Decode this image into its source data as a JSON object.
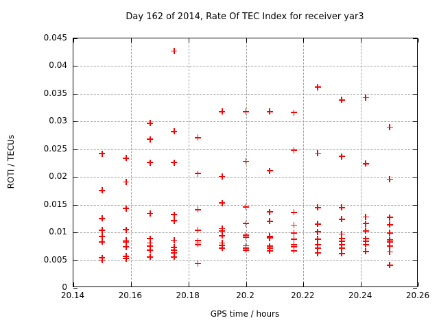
{
  "chart_data": {
    "type": "scatter",
    "title": "Day 162 of 2014, Rate Of TEC Index for receiver yar3",
    "xlabel": "GPS time / hours",
    "ylabel": "ROTI / TECUs",
    "xlim": [
      20.14,
      20.26
    ],
    "ylim": [
      0,
      0.045
    ],
    "xticks": {
      "values": [
        20.14,
        20.16,
        20.18,
        20.2,
        20.22,
        20.24,
        20.26
      ],
      "labels": [
        "20.14",
        "20.16",
        "20.18",
        "20.2",
        "20.22",
        "20.24",
        "20.26"
      ]
    },
    "yticks": {
      "values": [
        0,
        0.005,
        0.01,
        0.015,
        0.02,
        0.025,
        0.03,
        0.035,
        0.04,
        0.045
      ],
      "labels": [
        "0",
        "0.005",
        "0.01",
        "0.015",
        "0.02",
        "0.025",
        "0.03",
        "0.035",
        "0.04",
        "0.045"
      ]
    },
    "grid": true,
    "grid_x": [
      20.16,
      20.18,
      20.2,
      20.22,
      20.24
    ],
    "grid_y": [
      0.005,
      0.01,
      0.015,
      0.02,
      0.025,
      0.03,
      0.035,
      0.04
    ],
    "legend": "none",
    "marker": "plus",
    "marker_color": "#ff0000",
    "series": [
      {
        "name": "ROTI",
        "points": [
          [
            20.15,
            0.0242
          ],
          [
            20.15,
            0.0176
          ],
          [
            20.15,
            0.0125
          ],
          [
            20.15,
            0.0104
          ],
          [
            20.15,
            0.0093
          ],
          [
            20.15,
            0.0083
          ],
          [
            20.15,
            0.0054
          ],
          [
            20.15,
            0.005
          ],
          [
            20.1583,
            0.0234
          ],
          [
            20.1583,
            0.0191
          ],
          [
            20.1583,
            0.0143
          ],
          [
            20.1583,
            0.0105
          ],
          [
            20.1583,
            0.0086
          ],
          [
            20.1583,
            0.0083
          ],
          [
            20.1583,
            0.0074
          ],
          [
            20.1583,
            0.0057
          ],
          [
            20.1583,
            0.0053
          ],
          [
            20.1667,
            0.0297
          ],
          [
            20.1667,
            0.0268
          ],
          [
            20.1667,
            0.0226
          ],
          [
            20.1667,
            0.0134
          ],
          [
            20.1667,
            0.0089
          ],
          [
            20.1667,
            0.0081
          ],
          [
            20.1667,
            0.0075
          ],
          [
            20.1667,
            0.0068
          ],
          [
            20.1667,
            0.0056
          ],
          [
            20.175,
            0.0427
          ],
          [
            20.175,
            0.0282
          ],
          [
            20.175,
            0.0226
          ],
          [
            20.175,
            0.0132
          ],
          [
            20.175,
            0.0121
          ],
          [
            20.175,
            0.0086
          ],
          [
            20.175,
            0.0073
          ],
          [
            20.175,
            0.0068
          ],
          [
            20.175,
            0.0063
          ],
          [
            20.175,
            0.0056
          ],
          [
            20.1833,
            0.0271
          ],
          [
            20.1833,
            0.0206
          ],
          [
            20.1833,
            0.0141
          ],
          [
            20.1833,
            0.0104
          ],
          [
            20.1833,
            0.0085
          ],
          [
            20.1833,
            0.0081
          ],
          [
            20.1833,
            0.0078
          ],
          [
            20.1833,
            0.0044
          ],
          [
            20.1917,
            0.0318
          ],
          [
            20.1917,
            0.0201
          ],
          [
            20.1917,
            0.0153
          ],
          [
            20.1917,
            0.0107
          ],
          [
            20.1917,
            0.0103
          ],
          [
            20.1917,
            0.0094
          ],
          [
            20.1917,
            0.0081
          ],
          [
            20.1917,
            0.0077
          ],
          [
            20.1917,
            0.0072
          ],
          [
            20.2,
            0.0318
          ],
          [
            20.2,
            0.0228
          ],
          [
            20.2,
            0.0146
          ],
          [
            20.2,
            0.0116
          ],
          [
            20.2,
            0.0095
          ],
          [
            20.2,
            0.0091
          ],
          [
            20.2,
            0.0076
          ],
          [
            20.2,
            0.0072
          ],
          [
            20.2,
            0.0068
          ],
          [
            20.2083,
            0.0318
          ],
          [
            20.2083,
            0.0211
          ],
          [
            20.2083,
            0.0137
          ],
          [
            20.2083,
            0.012
          ],
          [
            20.2083,
            0.0093
          ],
          [
            20.2083,
            0.009
          ],
          [
            20.2083,
            0.0075
          ],
          [
            20.2083,
            0.0072
          ],
          [
            20.2083,
            0.0067
          ],
          [
            20.2167,
            0.0316
          ],
          [
            20.2167,
            0.0248
          ],
          [
            20.2167,
            0.0136
          ],
          [
            20.2167,
            0.0113
          ],
          [
            20.2167,
            0.0099
          ],
          [
            20.2167,
            0.0088
          ],
          [
            20.2167,
            0.0078
          ],
          [
            20.2167,
            0.0074
          ],
          [
            20.2167,
            0.0067
          ],
          [
            20.225,
            0.0362
          ],
          [
            20.225,
            0.0243
          ],
          [
            20.225,
            0.0145
          ],
          [
            20.225,
            0.0115
          ],
          [
            20.225,
            0.0101
          ],
          [
            20.225,
            0.0088
          ],
          [
            20.225,
            0.0078
          ],
          [
            20.225,
            0.0072
          ],
          [
            20.225,
            0.0063
          ],
          [
            20.2333,
            0.0339
          ],
          [
            20.2333,
            0.0237
          ],
          [
            20.2333,
            0.0145
          ],
          [
            20.2333,
            0.0124
          ],
          [
            20.2333,
            0.0097
          ],
          [
            20.2333,
            0.0089
          ],
          [
            20.2333,
            0.0084
          ],
          [
            20.2333,
            0.0078
          ],
          [
            20.2333,
            0.0072
          ],
          [
            20.2333,
            0.0062
          ],
          [
            20.2417,
            0.0343
          ],
          [
            20.2417,
            0.0224
          ],
          [
            20.2417,
            0.0128
          ],
          [
            20.2417,
            0.0116
          ],
          [
            20.2417,
            0.0103
          ],
          [
            20.2417,
            0.0089
          ],
          [
            20.2417,
            0.0084
          ],
          [
            20.2417,
            0.0078
          ],
          [
            20.2417,
            0.0066
          ],
          [
            20.25,
            0.029
          ],
          [
            20.25,
            0.0196
          ],
          [
            20.25,
            0.0127
          ],
          [
            20.25,
            0.0114
          ],
          [
            20.25,
            0.0099
          ],
          [
            20.25,
            0.0087
          ],
          [
            20.25,
            0.0083
          ],
          [
            20.25,
            0.0075
          ],
          [
            20.25,
            0.0065
          ],
          [
            20.25,
            0.0041
          ]
        ]
      }
    ]
  }
}
